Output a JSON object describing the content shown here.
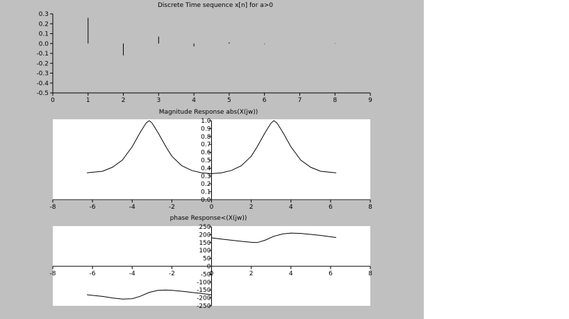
{
  "window": {
    "background": "#c0c0c0",
    "plot_background": "#ffffff"
  },
  "chart_data": [
    {
      "type": "stem",
      "title": "Discrete Time sequence x[n] for a>0",
      "x": [
        1,
        2,
        3,
        4,
        5,
        6,
        8
      ],
      "y": [
        0.26,
        -0.12,
        0.07,
        -0.03,
        0.012,
        -0.005,
        0.003
      ],
      "xlim": [
        0,
        9
      ],
      "ylim": [
        -0.5,
        0.3
      ],
      "xticks": [
        "0",
        "1",
        "2",
        "3",
        "4",
        "5",
        "6",
        "7",
        "8",
        "9"
      ],
      "yticks": [
        "0.3",
        "0.2",
        "0.1",
        "0.0",
        "-0.1",
        "-0.2",
        "-0.3",
        "-0.4",
        "-0.5"
      ],
      "grid": false
    },
    {
      "type": "line",
      "title": "Magnitude Response abs(X(jw))",
      "x": [
        -6.28,
        -5.5,
        -5.0,
        -4.5,
        -4.0,
        -3.6,
        -3.3,
        -3.14,
        -3.0,
        -2.7,
        -2.3,
        -2.0,
        -1.5,
        -1.0,
        -0.5,
        0.0,
        0.5,
        1.0,
        1.5,
        2.0,
        2.3,
        2.7,
        3.0,
        3.14,
        3.3,
        3.6,
        4.0,
        4.5,
        5.0,
        5.5,
        6.28
      ],
      "y": [
        0.34,
        0.36,
        0.41,
        0.5,
        0.67,
        0.85,
        0.97,
        1.0,
        0.97,
        0.85,
        0.67,
        0.55,
        0.43,
        0.37,
        0.34,
        0.33,
        0.34,
        0.37,
        0.43,
        0.55,
        0.67,
        0.85,
        0.97,
        1.0,
        0.97,
        0.85,
        0.67,
        0.5,
        0.41,
        0.36,
        0.34
      ],
      "xlim": [
        -8,
        8
      ],
      "ylim": [
        0,
        1
      ],
      "xticks": [
        "-8",
        "-6",
        "-4",
        "-2",
        "0",
        "2",
        "4",
        "6",
        "8"
      ],
      "yticks": [
        "1.0",
        "0.9",
        "0.8",
        "0.7",
        "0.6",
        "0.5",
        "0.4",
        "0.3",
        "0.2",
        "0.1",
        "0.0"
      ],
      "grid": false
    },
    {
      "type": "line",
      "title": "phase Response<(X(jw))",
      "x": [
        -6.28,
        -5.5,
        -5.0,
        -4.5,
        -4.0,
        -3.6,
        -3.14,
        -2.7,
        -2.3,
        -2.0,
        -1.5,
        -1.0,
        -0.5,
        0.0,
        0.0,
        0.5,
        1.0,
        1.5,
        2.0,
        2.3,
        2.7,
        3.14,
        3.6,
        4.0,
        4.5,
        5.0,
        5.5,
        6.28
      ],
      "y": [
        -180,
        -190,
        -200,
        -207,
        -205,
        -190,
        -165,
        -152,
        -150,
        -152,
        -158,
        -165,
        -172,
        -180,
        180,
        172,
        165,
        158,
        152,
        150,
        165,
        190,
        205,
        210,
        208,
        202,
        195,
        182
      ],
      "xlim": [
        -8,
        8
      ],
      "ylim": [
        -250,
        250
      ],
      "xticks": [
        "-8",
        "-6",
        "-4",
        "-2",
        "0",
        "2",
        "4",
        "6",
        "8"
      ],
      "yticks": [
        "250",
        "200",
        "150",
        "100",
        "50",
        "0",
        "-50",
        "-100",
        "-150",
        "-200",
        "-250"
      ],
      "grid": false
    }
  ]
}
